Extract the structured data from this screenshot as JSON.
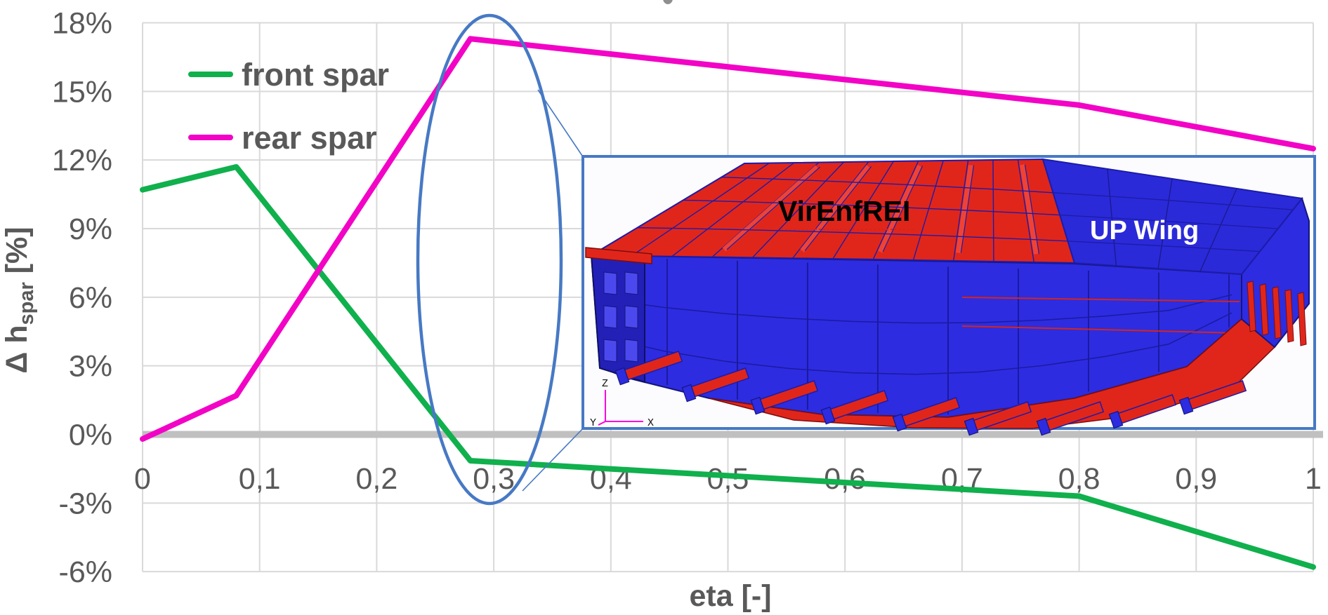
{
  "chart_data": {
    "type": "line",
    "title": "",
    "xlabel": "eta [-]",
    "ylabel": "Δ h_spar [%]",
    "ylabel_parts": {
      "prefix": "Δ h",
      "sub": "spar",
      "suffix": " [%]"
    },
    "xlim": [
      0,
      1
    ],
    "ylim": [
      -6,
      18
    ],
    "grid": true,
    "decimal_style": "comma",
    "legend_position": "top-left-inside",
    "x_ticks": [
      {
        "v": 0.0,
        "label": "0"
      },
      {
        "v": 0.1,
        "label": "0,1"
      },
      {
        "v": 0.2,
        "label": "0,2"
      },
      {
        "v": 0.3,
        "label": "0,3"
      },
      {
        "v": 0.4,
        "label": "0,4"
      },
      {
        "v": 0.5,
        "label": "0,5"
      },
      {
        "v": 0.6,
        "label": "0,6"
      },
      {
        "v": 0.7,
        "label": "0,7"
      },
      {
        "v": 0.8,
        "label": "0,8"
      },
      {
        "v": 0.9,
        "label": "0,9"
      },
      {
        "v": 1.0,
        "label": "1"
      }
    ],
    "y_ticks": [
      {
        "v": 18,
        "label": "18%"
      },
      {
        "v": 15,
        "label": "15%"
      },
      {
        "v": 12,
        "label": "12%"
      },
      {
        "v": 9,
        "label": "9%"
      },
      {
        "v": 6,
        "label": "6%"
      },
      {
        "v": 3,
        "label": "3%"
      },
      {
        "v": 0,
        "label": "0%"
      },
      {
        "v": -3,
        "label": "-3%"
      },
      {
        "v": -6,
        "label": "-6%"
      }
    ],
    "series": [
      {
        "name": "front spar",
        "color": "#10b04d",
        "points": [
          [
            0,
            10.7
          ],
          [
            0.08,
            11.7
          ],
          [
            0.28,
            -1.15
          ],
          [
            0.8,
            -2.7
          ],
          [
            1.0,
            -5.8
          ]
        ]
      },
      {
        "name": "rear spar",
        "color": "#f203c6",
        "points": [
          [
            0,
            -0.2
          ],
          [
            0.08,
            1.7
          ],
          [
            0.28,
            17.3
          ],
          [
            0.8,
            14.4
          ],
          [
            1.0,
            12.5
          ]
        ]
      }
    ],
    "colors": {
      "grid": "#d9d9d9",
      "zero_line": "#c0c0c0",
      "tick_text": "#595959"
    }
  },
  "annotation": {
    "shape": "ellipse",
    "color": "#4779c4",
    "purpose": "magnifier ellipse around eta ≈ 0.3 linked to the wing-box inset"
  },
  "inset": {
    "label_left": "VirEnfREI",
    "label_right": "UP Wing",
    "label_left_color": "#000000",
    "label_right_color": "#ffffff",
    "border_color": "#4779c4",
    "background": "#fcfcfe",
    "model_colors": {
      "red": "#e0261b",
      "blue": "#2b2ad9",
      "edge": "#1c1ca8"
    },
    "axis_triad": {
      "up": "Z",
      "left": "Y",
      "right": "X",
      "color": "#ff00dc"
    }
  }
}
